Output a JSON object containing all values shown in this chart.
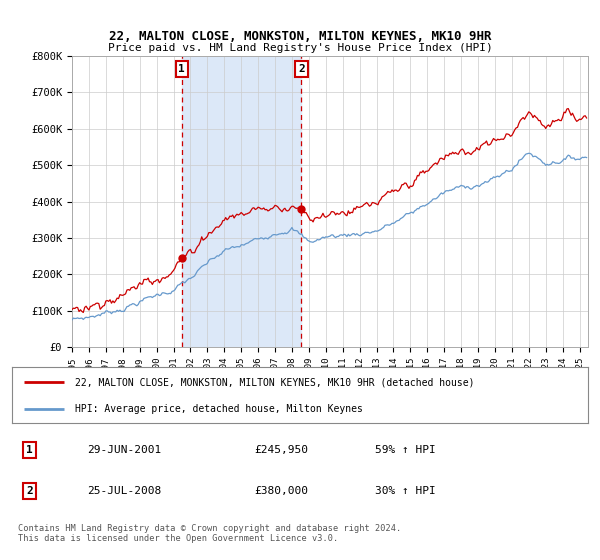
{
  "title": "22, MALTON CLOSE, MONKSTON, MILTON KEYNES, MK10 9HR",
  "subtitle": "Price paid vs. HM Land Registry's House Price Index (HPI)",
  "ylim": [
    0,
    800000
  ],
  "yticks": [
    0,
    100000,
    200000,
    300000,
    400000,
    500000,
    600000,
    700000,
    800000
  ],
  "ytick_labels": [
    "£0",
    "£100K",
    "£200K",
    "£300K",
    "£400K",
    "£500K",
    "£600K",
    "£700K",
    "£800K"
  ],
  "xlim_start": 1995,
  "xlim_end": 2025.5,
  "sale1_date": 2001.49,
  "sale1_price": 245950,
  "sale2_date": 2008.56,
  "sale2_price": 380000,
  "legend_line1": "22, MALTON CLOSE, MONKSTON, MILTON KEYNES, MK10 9HR (detached house)",
  "legend_line2": "HPI: Average price, detached house, Milton Keynes",
  "table_entry1_date": "29-JUN-2001",
  "table_entry1_price": "£245,950",
  "table_entry1_hpi": "59% ↑ HPI",
  "table_entry2_date": "25-JUL-2008",
  "table_entry2_price": "£380,000",
  "table_entry2_hpi": "30% ↑ HPI",
  "footer": "Contains HM Land Registry data © Crown copyright and database right 2024.\nThis data is licensed under the Open Government Licence v3.0.",
  "property_color": "#cc0000",
  "hpi_color": "#6699cc",
  "shade_color": "#dce8f8"
}
